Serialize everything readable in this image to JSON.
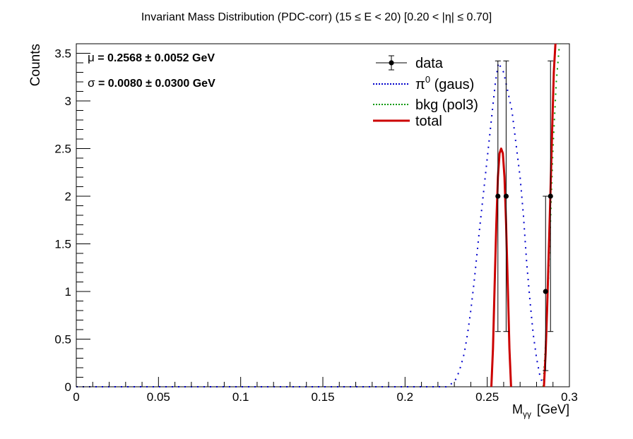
{
  "chart_data": {
    "type": "scatter",
    "title": "Invariant Mass Distribution (PDC-corr)   (15 ≤ E < 20)   [0.20 < |η| ≤ 0.70]",
    "xlabel": "M",
    "xlabel_sub": "γγ",
    "xlabel_unit": "[GeV]",
    "ylabel": "Counts",
    "xlim": [
      0,
      0.3
    ],
    "ylim": [
      0,
      3.6
    ],
    "xticks": [
      0,
      0.05,
      0.1,
      0.15,
      0.2,
      0.25,
      0.3
    ],
    "xtick_labels": [
      "0",
      "0.05",
      "0.1",
      "0.15",
      "0.2",
      "0.25",
      "0.3"
    ],
    "yticks": [
      0,
      0.5,
      1,
      1.5,
      2,
      2.5,
      3,
      3.5
    ],
    "ytick_labels": [
      "0",
      "0.5",
      "1",
      "1.5",
      "2",
      "2.5",
      "3",
      "3.5"
    ],
    "annotations": {
      "mu": {
        "symbol": "μ",
        "text": " = 0.2568  ± 0.0052 GeV"
      },
      "sigma": {
        "symbol": "σ",
        "text": " = 0.0080  ± 0.0300 GeV"
      }
    },
    "legend": {
      "position": "top-right",
      "entries": [
        {
          "key": "data",
          "label": "data",
          "style": "marker"
        },
        {
          "key": "pi0",
          "label": "π",
          "sup": "0",
          "suffix": " (gaus)",
          "style": "dotted",
          "color": "#0000cc"
        },
        {
          "key": "bkg",
          "label": "bkg (pol3)",
          "style": "dotted",
          "color": "#009900"
        },
        {
          "key": "total",
          "label": "total",
          "style": "solid",
          "color": "#cc0000"
        }
      ]
    },
    "colors": {
      "data": "#000000",
      "pi0": "#0000cc",
      "bkg": "#009900",
      "total": "#cc0000"
    },
    "data_points": [
      {
        "x": 0.2565,
        "y": 2,
        "err_low": 1.42,
        "err_high": 1.42
      },
      {
        "x": 0.2615,
        "y": 2,
        "err_low": 1.42,
        "err_high": 1.42
      },
      {
        "x": 0.2855,
        "y": 1,
        "err_low": 0.83,
        "err_high": 1.0
      },
      {
        "x": 0.2885,
        "y": 2,
        "err_low": 1.42,
        "err_high": 1.42
      }
    ],
    "series": [
      {
        "key": "pi0",
        "style": "dotted",
        "x": [
          0.0,
          0.05,
          0.1,
          0.15,
          0.2,
          0.225,
          0.23,
          0.232,
          0.234,
          0.236,
          0.238,
          0.24,
          0.242,
          0.245,
          0.25,
          0.255,
          0.2568,
          0.26,
          0.265,
          0.27,
          0.272,
          0.274,
          0.276,
          0.278,
          0.28,
          0.282,
          0.284
        ],
        "y": [
          0.0,
          0.0,
          0.0,
          0.0,
          0.0,
          0.0,
          0.05,
          0.12,
          0.22,
          0.35,
          0.55,
          0.8,
          1.1,
          1.6,
          2.4,
          3.2,
          3.4,
          3.3,
          2.9,
          2.2,
          1.8,
          1.3,
          0.9,
          0.55,
          0.3,
          0.12,
          0.02
        ]
      },
      {
        "key": "bkg",
        "style": "dotted",
        "x": [
          0.284,
          0.286,
          0.288,
          0.29,
          0.292,
          0.294
        ],
        "y": [
          0.0,
          0.6,
          1.5,
          2.5,
          3.2,
          3.6
        ]
      },
      {
        "key": "total",
        "style": "solid",
        "x": [
          0.2525,
          0.2535,
          0.2545,
          0.2555,
          0.2565,
          0.2575,
          0.2585,
          0.2595,
          0.2605,
          0.2615,
          0.2625,
          0.2635,
          0.2645
        ],
        "y": [
          0.0,
          0.4,
          1.05,
          1.7,
          2.2,
          2.45,
          2.5,
          2.45,
          2.2,
          1.7,
          1.05,
          0.4,
          0.0
        ]
      },
      {
        "key": "total",
        "style": "solid",
        "x": [
          0.2845,
          0.2855,
          0.2865,
          0.2875,
          0.2885,
          0.2895,
          0.2905,
          0.2915
        ],
        "y": [
          0.0,
          0.35,
          0.85,
          1.45,
          2.05,
          2.7,
          3.3,
          3.6
        ]
      }
    ]
  }
}
